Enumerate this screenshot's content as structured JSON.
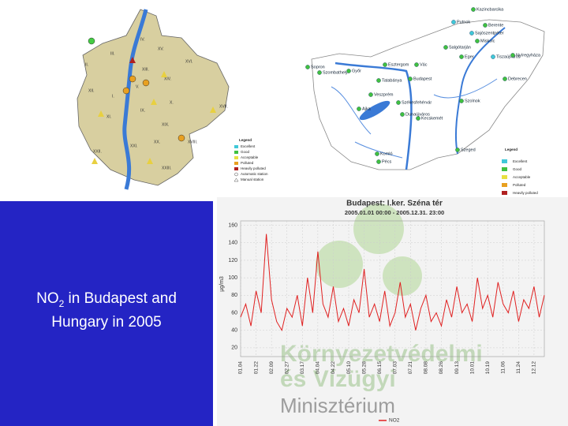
{
  "slide": {
    "title_main": "NO",
    "title_sub": "2",
    "title_rest": " in Budapest and Hungary in 2005"
  },
  "budapest_map": {
    "districts": [
      "IV.",
      "III.",
      "XV.",
      "II.",
      "XVI.",
      "XIII.",
      "XIV.",
      "XII.",
      "I.",
      "V.",
      "XVII.",
      "XI.",
      "X.",
      "IX.",
      "XXII.",
      "XXI.",
      "XIX.",
      "XVIII.",
      "XX.",
      "XXIII."
    ],
    "legend": {
      "title": "Legend",
      "items": [
        "Excellent",
        "Good",
        "Acceptable",
        "Polluted",
        "Heavily polluted",
        "Automatic station",
        "Manual station"
      ]
    }
  },
  "hungary_map": {
    "towns": [
      "Kazincbarcika",
      "Putnok",
      "Berente",
      "Sajószentpéter",
      "Miskolc",
      "Salgótarján",
      "Eger",
      "Tiszaújváros",
      "Nyíregyháza",
      "Sopron",
      "Szombathely",
      "Győr",
      "Esztergom",
      "Vác",
      "Tatabánya",
      "Budapest",
      "Veszprém",
      "Székesfehérvár",
      "Dunaújváros",
      "Ajka",
      "Szolnok",
      "Debrecen",
      "Kecskemét",
      "Szeged",
      "Komló",
      "Pécs"
    ],
    "legend": {
      "title": "Legend",
      "items": [
        "Excellent",
        "Good",
        "Acceptable",
        "Polluted",
        "Heavily polluted"
      ]
    }
  },
  "watermark": [
    "Környezetvédelmi",
    "és Vízügyi",
    "Minisztérium"
  ],
  "chart_data": {
    "type": "line",
    "title": "Budapest: I.ker. Széna tér",
    "subtitle": "2005.01.01 00:00 - 2005.12.31. 23:00",
    "y_label": "µg/m3",
    "categories": [
      "01.04",
      null,
      null,
      "01.22",
      null,
      null,
      "02.09",
      null,
      null,
      "02.27",
      null,
      null,
      "03.17",
      null,
      null,
      "04.04",
      null,
      null,
      "04.22",
      null,
      null,
      "05.10",
      null,
      null,
      "05.28",
      null,
      null,
      "06.15",
      null,
      null,
      "07.03",
      null,
      null,
      "07.21",
      null,
      null,
      "08.08",
      null,
      null,
      "08.26",
      null,
      null,
      "09.13",
      null,
      null,
      "10.01",
      null,
      null,
      "10.19",
      null,
      null,
      "11.06",
      null,
      null,
      "11.24",
      null,
      null,
      "12.12",
      null,
      null
    ],
    "series": [
      {
        "name": "NO2",
        "color": "#e02020",
        "values": [
          55,
          70,
          45,
          85,
          60,
          150,
          75,
          50,
          40,
          65,
          55,
          80,
          45,
          100,
          60,
          130,
          70,
          55,
          90,
          50,
          65,
          45,
          75,
          60,
          110,
          55,
          70,
          50,
          85,
          45,
          60,
          95,
          55,
          70,
          40,
          65,
          80,
          50,
          60,
          45,
          75,
          55,
          90,
          60,
          70,
          50,
          100,
          65,
          80,
          55,
          95,
          70,
          60,
          85,
          50,
          75,
          65,
          90,
          55,
          80
        ]
      }
    ],
    "ylim": [
      10,
      165
    ],
    "yticks": [
      20,
      40,
      60,
      80,
      100,
      120,
      140,
      160
    ],
    "grid": true
  }
}
